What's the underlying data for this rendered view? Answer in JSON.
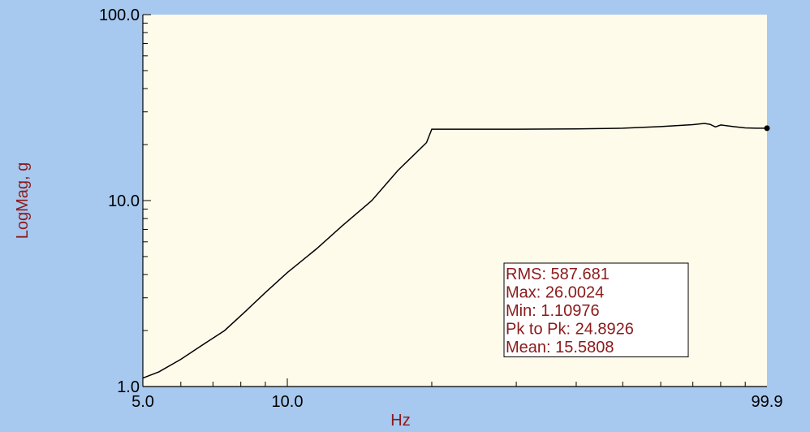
{
  "chart_data": {
    "type": "line",
    "title": "",
    "xlabel": "Hz",
    "ylabel": "LogMag, g",
    "x_scale": "log",
    "y_scale": "log",
    "xlim": [
      5.0,
      99.9
    ],
    "ylim": [
      1.0,
      100.0
    ],
    "x_tick_labels": [
      {
        "value": 5.0,
        "label": "5.0"
      },
      {
        "value": 10.0,
        "label": "10.0"
      },
      {
        "value": 99.9,
        "label": "99.9"
      }
    ],
    "y_tick_labels": [
      {
        "value": 1.0,
        "label": "1.0"
      },
      {
        "value": 10.0,
        "label": "10.0"
      },
      {
        "value": 100.0,
        "label": "100.0"
      }
    ],
    "grid": false,
    "series": [
      {
        "x": [
          5.0,
          5.4,
          6.0,
          6.6,
          7.4,
          8.2,
          9.0,
          10.0,
          11.5,
          13.0,
          15.0,
          17.0,
          19.5,
          20.0,
          25.0,
          30.0,
          40.0,
          50.0,
          60.0,
          70.0,
          74.0,
          76.0,
          78.0,
          80.0,
          85.0,
          90.0,
          95.0,
          99.9
        ],
        "y": [
          1.11,
          1.2,
          1.4,
          1.65,
          2.0,
          2.55,
          3.2,
          4.1,
          5.5,
          7.3,
          10.0,
          14.5,
          20.5,
          24.2,
          24.2,
          24.2,
          24.3,
          24.5,
          25.0,
          25.6,
          26.0,
          25.7,
          24.9,
          25.5,
          25.0,
          24.6,
          24.5,
          24.5
        ]
      }
    ],
    "end_marker": {
      "x": 99.9,
      "y": 24.5
    },
    "stats": {
      "lines": [
        "RMS: 587.681",
        "Max: 26.0024",
        "Min: 1.10976",
        "Pk to Pk: 24.8926",
        "Mean: 15.5808"
      ]
    },
    "colors": {
      "background": "#a7c8ef",
      "plot_area": "#fffbeb",
      "line": "#000000",
      "axis_title": "#8b1a1a",
      "stats_text": "#8b1a1a"
    }
  }
}
